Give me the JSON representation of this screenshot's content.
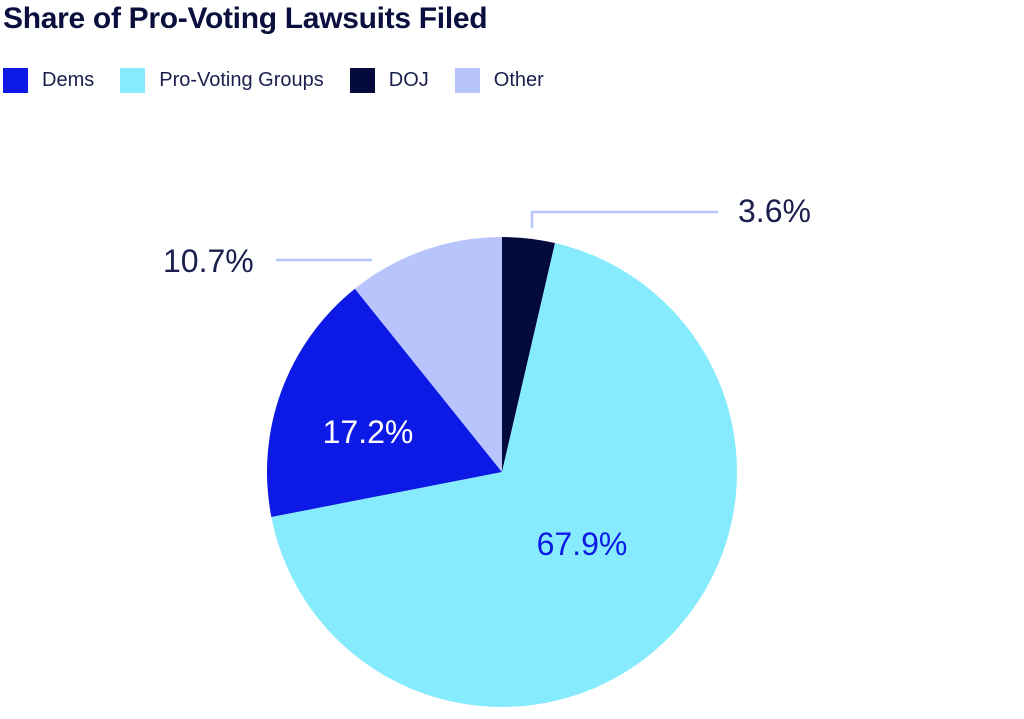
{
  "chart_data": {
    "type": "pie",
    "title": "Share of Pro-Voting Lawsuits Filed",
    "legend_placement": "top-left",
    "slices": [
      {
        "name": "DOJ",
        "value": 3.6,
        "label": "3.6%",
        "color": "#050a3c"
      },
      {
        "name": "Pro-Voting Groups",
        "value": 67.9,
        "label": "67.9%",
        "color": "#86ecfd"
      },
      {
        "name": "Dems",
        "value": 17.2,
        "label": "17.2%",
        "color": "#0d1ae6"
      },
      {
        "name": "Other",
        "value": 10.7,
        "label": "10.7%",
        "color": "#b8c4fc"
      }
    ],
    "legend": [
      {
        "name": "Dems",
        "color": "#0d1ae6"
      },
      {
        "name": "Pro-Voting Groups",
        "color": "#86ecfd"
      },
      {
        "name": "DOJ",
        "color": "#050a3c"
      },
      {
        "name": "Other",
        "color": "#b8c4fc"
      }
    ]
  }
}
